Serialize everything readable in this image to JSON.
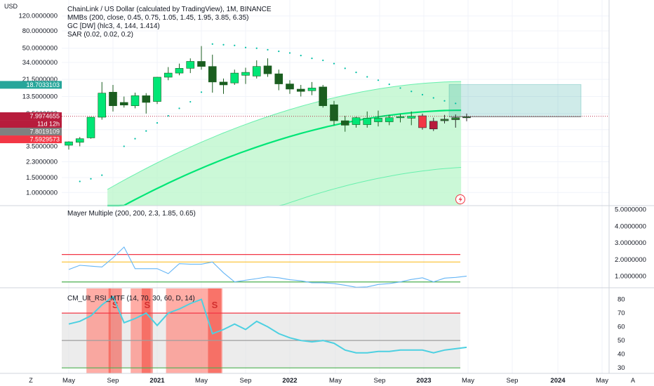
{
  "currency_label": "USD",
  "legend_lines": [
    "ChainLink / US Dollar (calculated by TradingView), 1M, BINANCE",
    "MMBs (200, close, 0.45, 0.75, 1.05, 1.45, 1.95, 3.85, 6.35)",
    "GC [DW] (hlc3, 4, 144, 1.414)",
    "SAR (0.02, 0.02, 0.2)"
  ],
  "price_axis_labels": [
    "120.0000000",
    "80.0000000",
    "50.0000000",
    "34.0000000",
    "21.5000000",
    "13.5000000",
    "8.5000000",
    "5.5000000",
    "3.5000000",
    "2.3000000",
    "1.5000000",
    "1.0000000"
  ],
  "price_badges": [
    {
      "text": "18.7033103",
      "color": "#26a69a"
    },
    {
      "text": "7.9974655",
      "color": "#b71c3c"
    },
    {
      "text": "11d 12h",
      "color": "#b71c3c"
    },
    {
      "text": "7.8019109",
      "color": "#808080"
    },
    {
      "text": "7.5929573",
      "color": "#f23645"
    }
  ],
  "mayer_label": "Mayer Multiple (200, 200, 2.3, 1.85, 0.65)",
  "mayer_axis_labels": [
    "5.0000000",
    "4.0000000",
    "3.0000000",
    "2.0000000",
    "1.0000000"
  ],
  "rsi_label": "CM_Ult_RSI_MTF (14, 70, 30, 60, D, 14)",
  "rsi_axis_labels": [
    "80",
    "70",
    "60",
    "50",
    "40",
    "30"
  ],
  "rsi_sell_marker": "S",
  "time_axis_labels": [
    "May",
    "Sep",
    "2021",
    "May",
    "Sep",
    "2022",
    "May",
    "Sep",
    "2023",
    "May",
    "Sep",
    "2024",
    "May"
  ],
  "footer_left": "Z",
  "footer_right": "A",
  "chart_data": {
    "type": "candlestick",
    "title": "ChainLink / US Dollar (calculated by TradingView), 1M, BINANCE",
    "yscale": "log",
    "price_range": [
      0.7,
      185
    ],
    "candles": [
      {
        "o": 3.6,
        "h": 4.0,
        "l": 3.2,
        "c": 3.95
      },
      {
        "o": 3.9,
        "h": 4.5,
        "l": 3.5,
        "c": 4.3
      },
      {
        "o": 4.4,
        "h": 7.8,
        "l": 4.3,
        "c": 7.7
      },
      {
        "o": 7.7,
        "h": 20.0,
        "l": 7.2,
        "c": 14.8
      },
      {
        "o": 15.2,
        "h": 18.5,
        "l": 9.0,
        "c": 10.5
      },
      {
        "o": 11.5,
        "h": 13.5,
        "l": 10.0,
        "c": 10.7
      },
      {
        "o": 10.5,
        "h": 15.0,
        "l": 9.8,
        "c": 13.8
      },
      {
        "o": 13.8,
        "h": 14.8,
        "l": 8.5,
        "c": 11.5
      },
      {
        "o": 11.8,
        "h": 23.0,
        "l": 11.0,
        "c": 22.8
      },
      {
        "o": 22.8,
        "h": 30.0,
        "l": 21.0,
        "c": 25.5
      },
      {
        "o": 25.5,
        "h": 33.0,
        "l": 24.0,
        "c": 29.0
      },
      {
        "o": 29.0,
        "h": 38.0,
        "l": 25.5,
        "c": 35.0
      },
      {
        "o": 35.0,
        "h": 53.0,
        "l": 28.0,
        "c": 30.5
      },
      {
        "o": 30.5,
        "h": 42.0,
        "l": 15.0,
        "c": 20.0
      },
      {
        "o": 20.0,
        "h": 22.0,
        "l": 14.5,
        "c": 18.5
      },
      {
        "o": 19.5,
        "h": 28.0,
        "l": 18.5,
        "c": 25.5
      },
      {
        "o": 24.0,
        "h": 29.5,
        "l": 19.0,
        "c": 26.0
      },
      {
        "o": 23.5,
        "h": 36.0,
        "l": 22.0,
        "c": 30.5
      },
      {
        "o": 31.0,
        "h": 38.0,
        "l": 23.0,
        "c": 25.0
      },
      {
        "o": 25.0,
        "h": 28.0,
        "l": 16.0,
        "c": 19.0
      },
      {
        "o": 19.0,
        "h": 21.0,
        "l": 14.5,
        "c": 16.5
      },
      {
        "o": 16.5,
        "h": 18.5,
        "l": 13.5,
        "c": 15.5
      },
      {
        "o": 15.8,
        "h": 20.0,
        "l": 14.0,
        "c": 17.0
      },
      {
        "o": 17.5,
        "h": 18.5,
        "l": 10.0,
        "c": 10.5
      },
      {
        "o": 10.8,
        "h": 12.0,
        "l": 6.2,
        "c": 7.0
      },
      {
        "o": 7.0,
        "h": 8.0,
        "l": 5.2,
        "c": 6.2
      },
      {
        "o": 6.3,
        "h": 7.8,
        "l": 5.8,
        "c": 7.6
      },
      {
        "o": 6.3,
        "h": 9.0,
        "l": 5.8,
        "c": 7.5
      },
      {
        "o": 6.8,
        "h": 9.2,
        "l": 6.0,
        "c": 7.5
      },
      {
        "o": 6.8,
        "h": 8.2,
        "l": 6.2,
        "c": 7.6
      },
      {
        "o": 7.6,
        "h": 8.4,
        "l": 6.7,
        "c": 7.8
      },
      {
        "o": 7.5,
        "h": 9.0,
        "l": 6.2,
        "c": 7.9
      },
      {
        "o": 8.0,
        "h": 8.5,
        "l": 5.5,
        "c": 5.8
      },
      {
        "o": 6.9,
        "h": 7.6,
        "l": 5.3,
        "c": 5.6
      },
      {
        "o": 7.0,
        "h": 8.2,
        "l": 6.5,
        "c": 7.3
      },
      {
        "o": 7.2,
        "h": 8.3,
        "l": 5.8,
        "c": 7.6
      },
      {
        "o": 7.6,
        "h": 8.5,
        "l": 6.9,
        "c": 7.8
      }
    ],
    "mayer_multiple_range": [
      0.3,
      5.2
    ],
    "mayer_multiple": [
      1.4,
      1.65,
      1.6,
      1.55,
      2.1,
      2.75,
      1.45,
      1.45,
      1.45,
      1.15,
      1.75,
      1.72,
      1.72,
      1.85,
      1.2,
      0.65,
      0.75,
      0.85,
      0.95,
      0.9,
      0.78,
      0.72,
      0.6,
      0.6,
      0.55,
      0.45,
      0.33,
      0.35,
      0.5,
      0.55,
      0.65,
      0.8,
      0.9,
      0.65,
      0.88,
      0.92,
      1.0
    ],
    "mayer_levels": [
      {
        "value": 2.3,
        "color": "#f23645"
      },
      {
        "value": 1.85,
        "color": "#fbc02d"
      },
      {
        "value": 0.65,
        "color": "#4caf50"
      }
    ],
    "rsi_range": [
      26,
      88
    ],
    "rsi": [
      62,
      64,
      68,
      76,
      82,
      63,
      66,
      70,
      61,
      70,
      73,
      77,
      80,
      55,
      58,
      62,
      58,
      64,
      60,
      55,
      52,
      50,
      49,
      50,
      48,
      43,
      41,
      41,
      42,
      42,
      43,
      43,
      43,
      41,
      43,
      44,
      45
    ],
    "rsi_levels": [
      {
        "value": 70,
        "color": "#f23645"
      },
      {
        "value": 50,
        "color": "#9e9e9e"
      },
      {
        "value": 30,
        "color": "#4caf50"
      }
    ]
  }
}
